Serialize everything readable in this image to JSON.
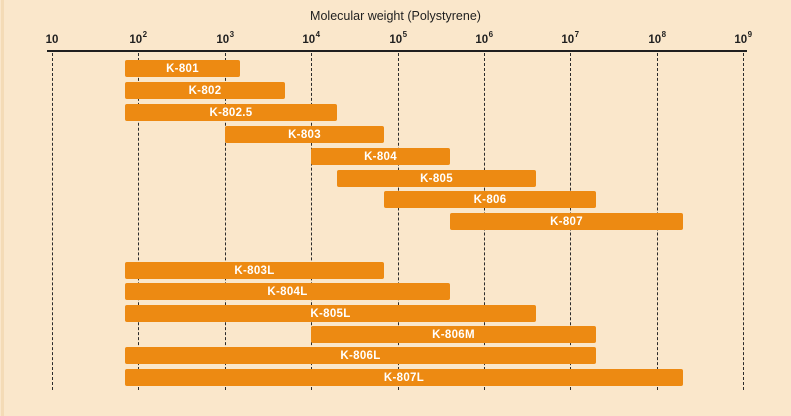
{
  "title": "Molecular weight (Polystyrene)",
  "colors": {
    "background": "#FAE7CB",
    "bar": "#ED8A12",
    "bar_text": "#FFFFFF",
    "ink": "#1F1F1F",
    "grid": "#2B2B2B",
    "edge_strip": "#F4DBB6"
  },
  "chart_data": {
    "type": "bar",
    "orientation": "horizontal-range",
    "title": "Molecular weight (Polystyrene)",
    "x_scale": "log10",
    "x_range": [
      10,
      1000000000
    ],
    "grid": "vertical-dashed",
    "legend": "none",
    "ticks": [
      {
        "base": "10",
        "exp": ""
      },
      {
        "base": "10",
        "exp": "2"
      },
      {
        "base": "10",
        "exp": "3"
      },
      {
        "base": "10",
        "exp": "4"
      },
      {
        "base": "10",
        "exp": "5"
      },
      {
        "base": "10",
        "exp": "6"
      },
      {
        "base": "10",
        "exp": "7"
      },
      {
        "base": "10",
        "exp": "8"
      },
      {
        "base": "10",
        "exp": "9"
      }
    ],
    "groups": [
      {
        "name": "analytical-columns",
        "bars": [
          {
            "label": "K-801",
            "min": 70,
            "max": 1500
          },
          {
            "label": "K-802",
            "min": 70,
            "max": 5000
          },
          {
            "label": "K-802.5",
            "min": 70,
            "max": 20000
          },
          {
            "label": "K-803",
            "min": 1000,
            "max": 70000
          },
          {
            "label": "K-804",
            "min": 10000,
            "max": 400000
          },
          {
            "label": "K-805",
            "min": 20000,
            "max": 4000000
          },
          {
            "label": "K-806",
            "min": 70000,
            "max": 20000000
          },
          {
            "label": "K-807",
            "min": 400000,
            "max": 200000000
          }
        ]
      },
      {
        "name": "linear-mixed-columns",
        "bars": [
          {
            "label": "K-803L",
            "min": 70,
            "max": 70000
          },
          {
            "label": "K-804L",
            "min": 70,
            "max": 400000
          },
          {
            "label": "K-805L",
            "min": 70,
            "max": 4000000
          },
          {
            "label": "K-806M",
            "min": 10000,
            "max": 20000000
          },
          {
            "label": "K-806L",
            "min": 70,
            "max": 20000000
          },
          {
            "label": "K-807L",
            "min": 70,
            "max": 200000000
          }
        ]
      }
    ]
  }
}
